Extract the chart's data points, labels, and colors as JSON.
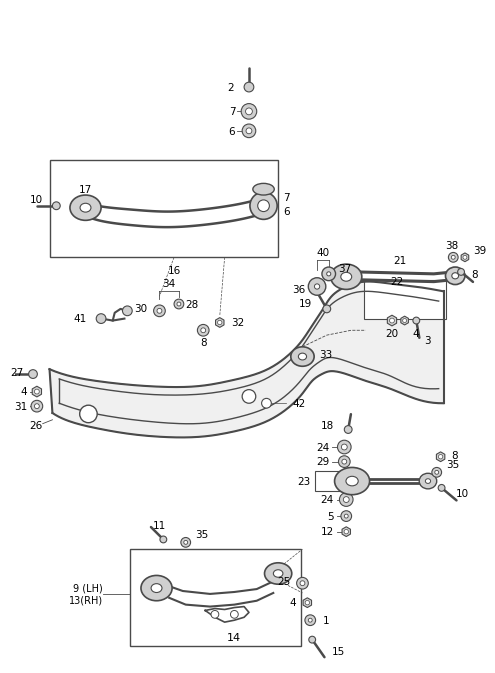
{
  "bg_color": "#ffffff",
  "line_color": "#4a4a4a",
  "text_color": "#000000",
  "gray_fill": "#d0d0d0",
  "light_gray": "#e8e8e8"
}
